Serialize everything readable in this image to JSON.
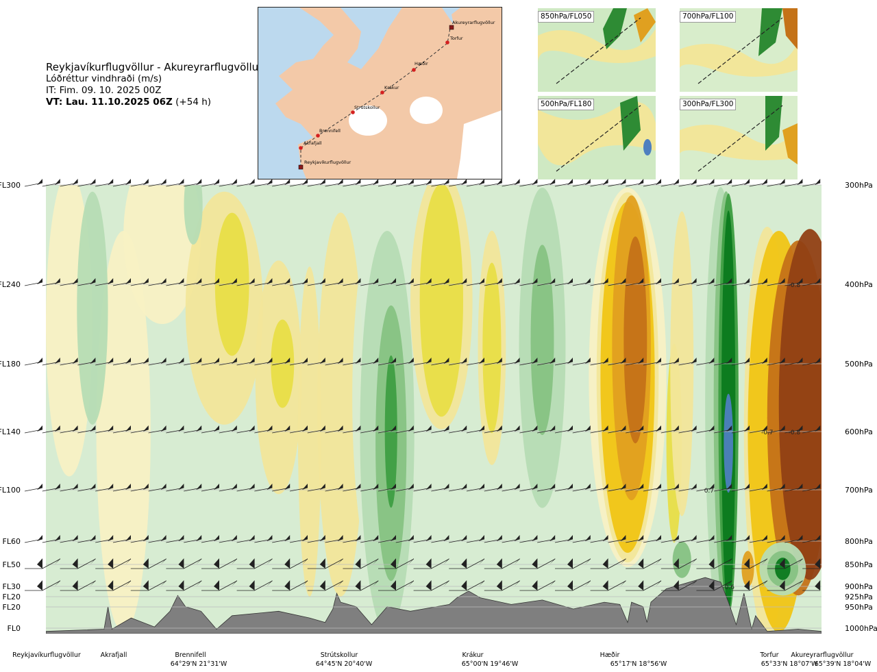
{
  "header": {
    "route": "Reykjavíkurflugvöllur - Akureyrarflugvöllur",
    "parameter": "Lóðréttur vindhraði (m/s)",
    "initial_time": "IT: Fim. 09. 10. 2025 00Z",
    "valid_time_bold": "VT: Lau. 11.10.2025 06Z",
    "valid_time_offset": "(+54 h)"
  },
  "route_map": {
    "waypoints": [
      "Akureyrarflugvöllur",
      "Torfur",
      "Hæðir",
      "Krákur",
      "Strútskollur",
      "Brennifell",
      "Akrafjall",
      "Reykjavíkurflugvöllur"
    ],
    "colors": {
      "sea": "#bcd9ee",
      "land": "#f3c9a8",
      "glacier": "#ffffff",
      "route": "#333333",
      "point": "#d42020"
    }
  },
  "mini_maps": [
    {
      "label": "850hPa/FL050"
    },
    {
      "label": "700hPa/FL100"
    },
    {
      "label": "500hPa/FL180"
    },
    {
      "label": "300hPa/FL300"
    }
  ],
  "chart_data": {
    "type": "cross-section",
    "title": "Reykjavíkurflugvöllur - Akureyrarflugvöllur",
    "variable": "Lóðréttur vindhraði (m/s)",
    "levels": [
      {
        "fl": "FL300",
        "hpa": "300hPa",
        "p": 300
      },
      {
        "fl": "FL240",
        "hpa": "400hPa",
        "p": 400
      },
      {
        "fl": "FL180",
        "hpa": "500hPa",
        "p": 500
      },
      {
        "fl": "FL140",
        "hpa": "600hPa",
        "p": 600
      },
      {
        "fl": "FL100",
        "hpa": "700hPa",
        "p": 700
      },
      {
        "fl": "FL60",
        "hpa": "800hPa",
        "p": 800
      },
      {
        "fl": "FL50",
        "hpa": "850hPa",
        "p": 850
      },
      {
        "fl": "FL30",
        "hpa": "900hPa",
        "p": 900
      },
      {
        "fl": "FL20",
        "hpa": "925hPa",
        "p": 925
      },
      {
        "fl": "FL20",
        "hpa": "950hPa",
        "p": 950
      },
      {
        "fl": "FL0",
        "hpa": "1000hPa",
        "p": 1000
      }
    ],
    "waypoints": [
      {
        "name": "Reykjavíkurflugvöllur",
        "coord": "",
        "pos": 0.0
      },
      {
        "name": "Akrafjall",
        "coord": "",
        "pos": 0.08
      },
      {
        "name": "Brennifell",
        "coord": "64°29'N 21°31'W",
        "pos": 0.18
      },
      {
        "name": "Strútskollur",
        "coord": "64°45'N 20°40'W",
        "pos": 0.38
      },
      {
        "name": "Krákur",
        "coord": "65°00'N 19°46'W",
        "pos": 0.57
      },
      {
        "name": "Hæðir",
        "coord": "65°17'N 18°56'W",
        "pos": 0.74
      },
      {
        "name": "Torfur",
        "coord": "65°33'N 18°07'W",
        "pos": 0.935
      },
      {
        "name": "Akureyrarflugvöllur",
        "coord": "65°39'N 18°04'W",
        "pos": 1.0
      }
    ],
    "value_labels": [
      {
        "text": "-0.8",
        "pos": 0.965,
        "p": 400
      },
      {
        "text": "-0.7",
        "pos": 0.93,
        "p": 600
      },
      {
        "text": "-0.8",
        "pos": 0.965,
        "p": 600
      },
      {
        "text": "0.7",
        "pos": 0.855,
        "p": 700
      },
      {
        "text": "-0.6",
        "pos": 0.88,
        "p": 900
      }
    ],
    "contour_colors": {
      "strong_down": "#4e7fbf",
      "down_3": "#0b7a1e",
      "down_2": "#3e9e42",
      "down_1": "#86c283",
      "down_0": "#b6dcb4",
      "weak_down": "#d7ecd2",
      "weak_up": "#f8f1c4",
      "up_0": "#f2e69a",
      "up_1": "#e8de47",
      "up_2": "#f0c515",
      "up_3": "#e0a020",
      "up_4": "#c47218",
      "up_5": "#914014"
    }
  }
}
